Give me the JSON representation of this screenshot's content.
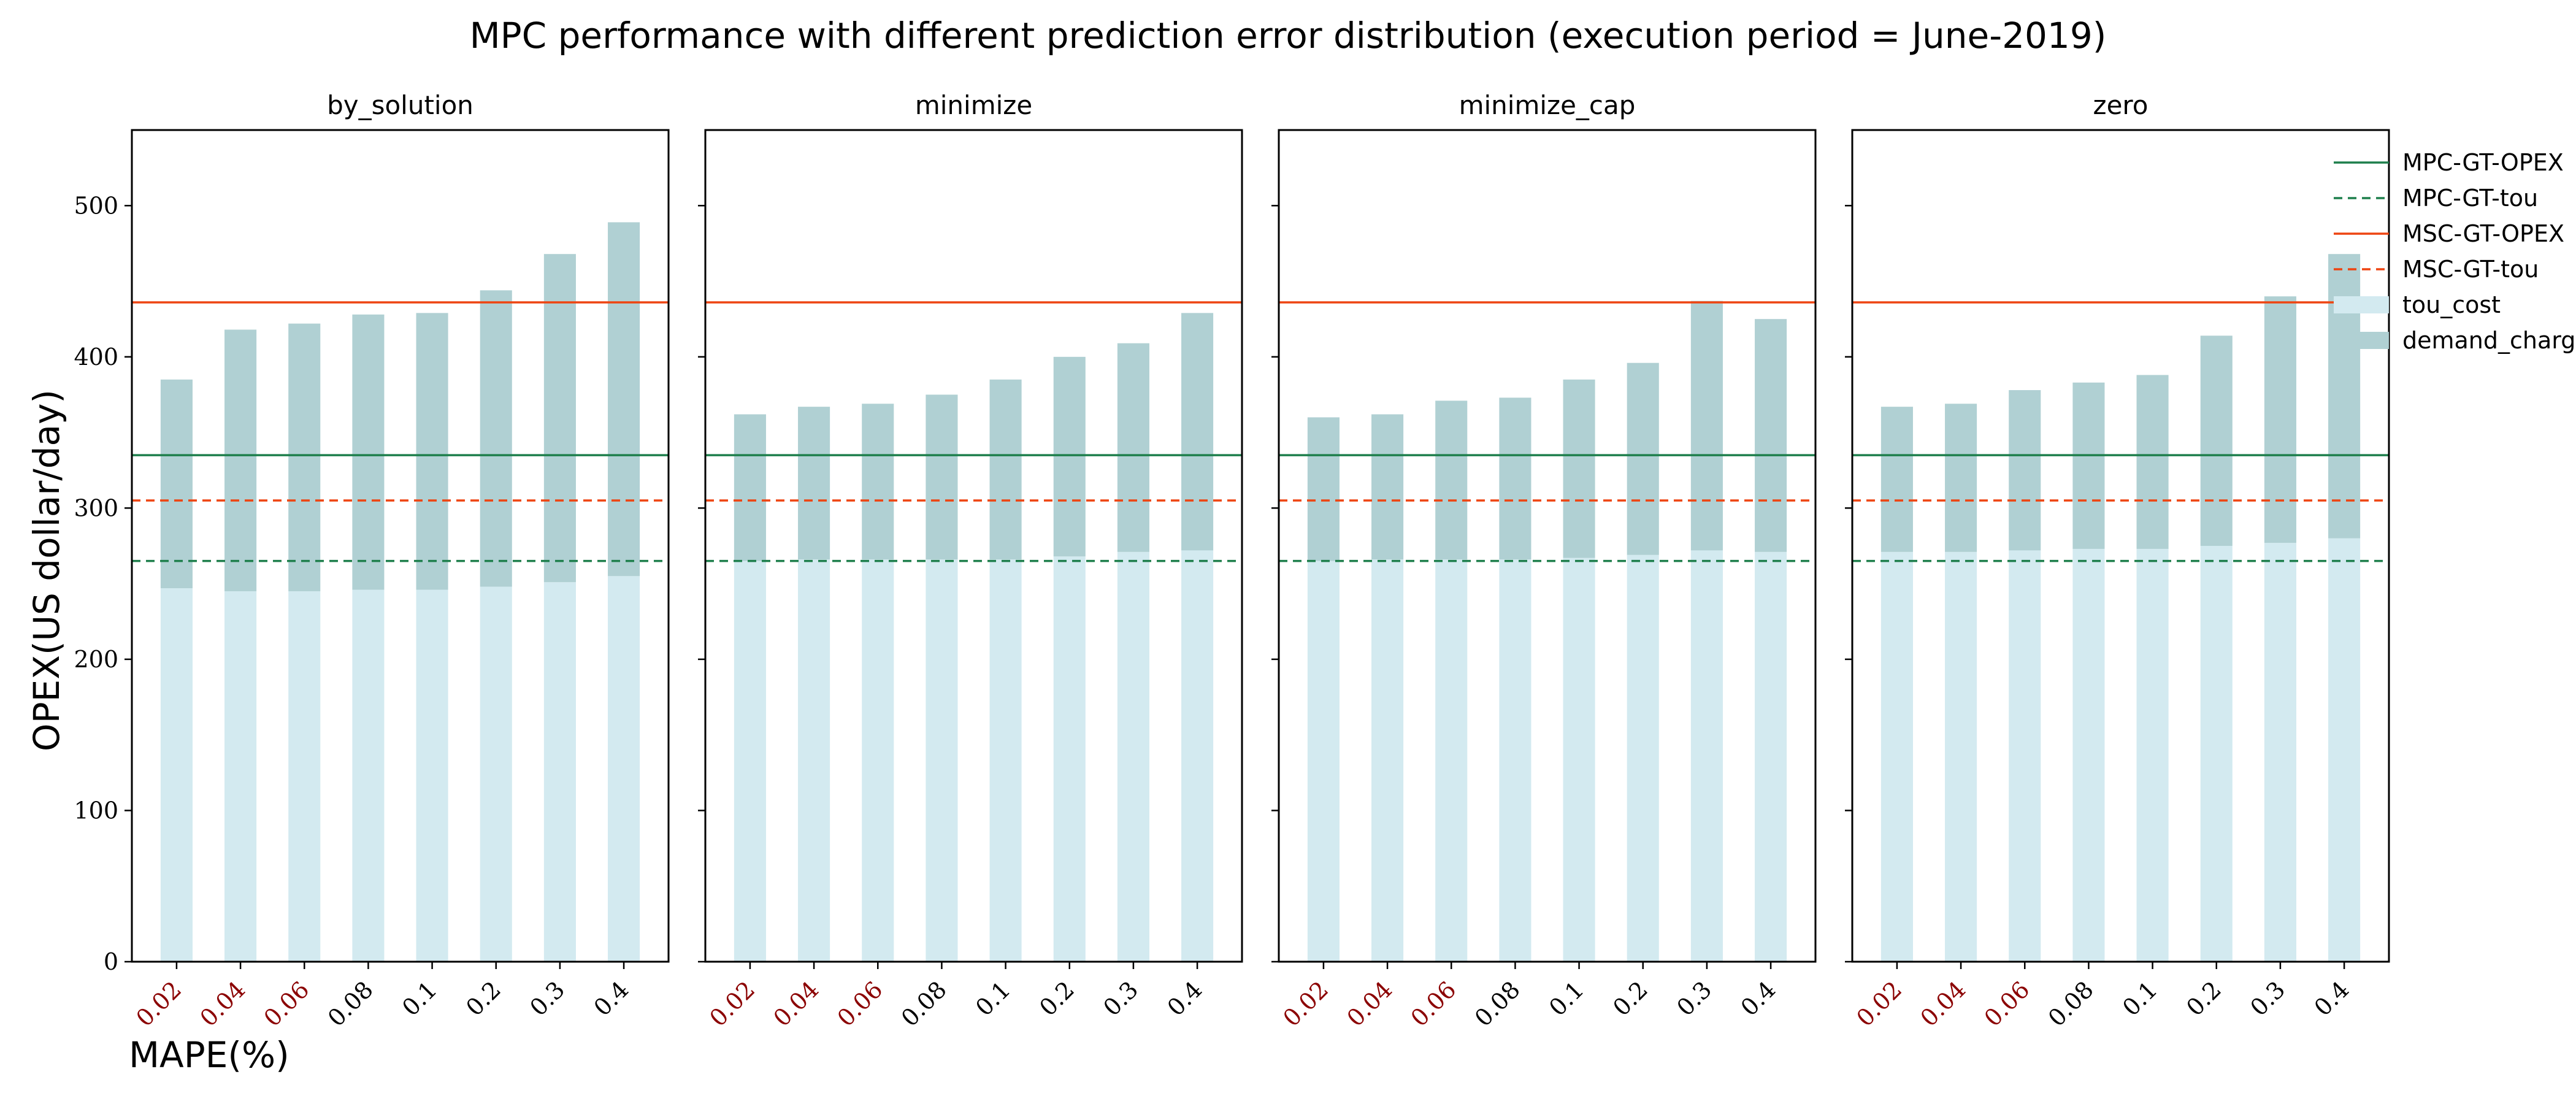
{
  "figure": {
    "title": "MPC performance with different prediction error distribution (execution period = June-2019)",
    "ylabel": "OPEX(US dollar/day)",
    "xlabel": "MAPE(%)"
  },
  "colors": {
    "tou_cost": "#d3eaf0",
    "demand_charge": "#b0d0d3",
    "mpc_line": "#1e7f4c",
    "msc_line": "#ee4411",
    "highlight_tick": "#8b0000",
    "normal_tick": "#000000"
  },
  "chart_data": {
    "type": "bar",
    "stacked": true,
    "categories": [
      "0.02",
      "0.04",
      "0.06",
      "0.08",
      "0.1",
      "0.2",
      "0.3",
      "0.4"
    ],
    "highlighted_categories": [
      "0.02",
      "0.04",
      "0.06"
    ],
    "ylim": [
      0,
      550
    ],
    "yticks": [
      0,
      100,
      200,
      300,
      400,
      500
    ],
    "grid": false,
    "legend": {
      "placement": "right",
      "entries": [
        {
          "label": "MPC-GT-OPEX",
          "kind": "line",
          "color": "#1e7f4c",
          "dash": "solid"
        },
        {
          "label": "MPC-GT-tou",
          "kind": "line",
          "color": "#1e7f4c",
          "dash": "dashed"
        },
        {
          "label": "MSC-GT-OPEX",
          "kind": "line",
          "color": "#ee4411",
          "dash": "solid"
        },
        {
          "label": "MSC-GT-tou",
          "kind": "line",
          "color": "#ee4411",
          "dash": "dashed"
        },
        {
          "label": "tou_cost",
          "kind": "patch",
          "color": "#d3eaf0"
        },
        {
          "label": "demand_charge",
          "kind": "patch",
          "color": "#b0d0d3"
        }
      ]
    },
    "reference_lines": [
      {
        "name": "MPC-GT-OPEX",
        "value": 335
      },
      {
        "name": "MPC-GT-tou",
        "value": 265
      },
      {
        "name": "MSC-GT-OPEX",
        "value": 436
      },
      {
        "name": "MSC-GT-tou",
        "value": 305
      }
    ],
    "panels": [
      {
        "title": "by_solution",
        "tou_cost": [
          247,
          245,
          245,
          246,
          246,
          248,
          251,
          255
        ],
        "demand_charge": [
          138,
          173,
          177,
          182,
          183,
          196,
          217,
          234
        ],
        "total": [
          385,
          418,
          422,
          428,
          429,
          444,
          468,
          489
        ]
      },
      {
        "title": "minimize",
        "tou_cost": [
          265,
          266,
          266,
          266,
          266,
          268,
          271,
          272
        ],
        "demand_charge": [
          97,
          101,
          103,
          109,
          119,
          132,
          138,
          157
        ],
        "total": [
          362,
          367,
          369,
          375,
          385,
          400,
          409,
          429
        ]
      },
      {
        "title": "minimize_cap",
        "tou_cost": [
          265,
          266,
          266,
          266,
          267,
          269,
          272,
          271
        ],
        "demand_charge": [
          95,
          96,
          105,
          107,
          118,
          127,
          165,
          154
        ],
        "total": [
          360,
          362,
          371,
          373,
          385,
          396,
          437,
          425
        ]
      },
      {
        "title": "zero",
        "tou_cost": [
          271,
          271,
          272,
          273,
          273,
          275,
          277,
          280
        ],
        "demand_charge": [
          96,
          98,
          106,
          110,
          115,
          139,
          163,
          188
        ],
        "total": [
          367,
          369,
          378,
          383,
          388,
          414,
          440,
          468
        ]
      }
    ]
  }
}
